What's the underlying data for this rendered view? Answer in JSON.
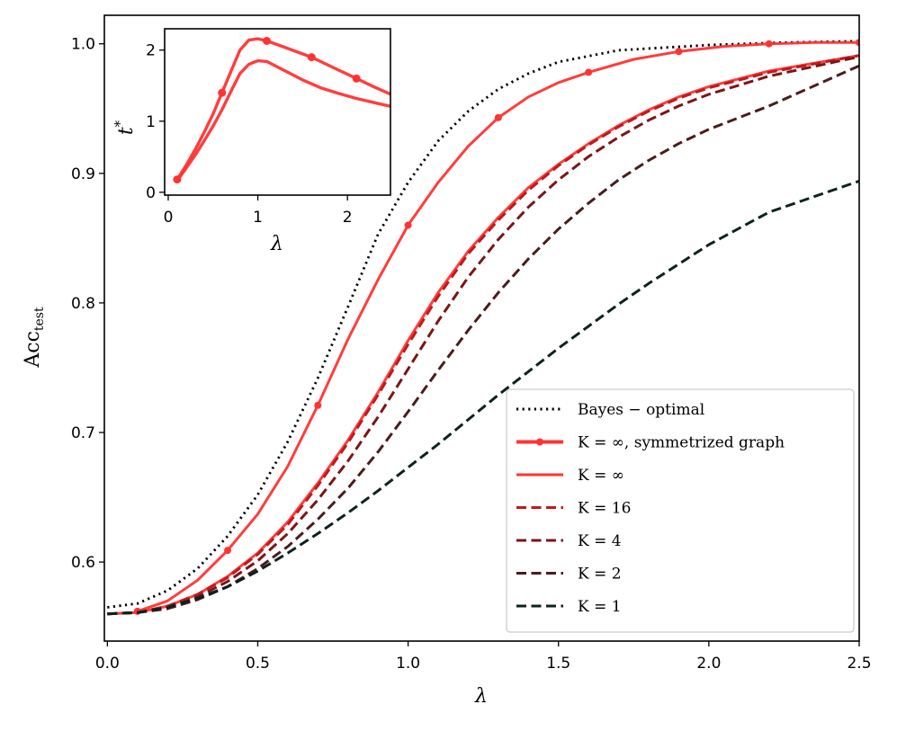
{
  "chart_data": [
    {
      "type": "line",
      "title": "",
      "xlabel": "λ",
      "ylabel": "Acc",
      "ylabel_subscript": "test",
      "xlim": [
        -0.01,
        2.5
      ],
      "ylim": [
        0.539,
        1.022
      ],
      "xticks": [
        "0.0",
        "0.5",
        "1.0",
        "1.5",
        "2.0",
        "2.5"
      ],
      "xtick_values": [
        0.0,
        0.5,
        1.0,
        1.5,
        2.0,
        2.5
      ],
      "yticks": [
        "0.6",
        "0.7",
        "0.8",
        "0.9",
        "1.0"
      ],
      "ytick_values": [
        0.6,
        0.7,
        0.8,
        0.9,
        1.0
      ],
      "grid": false,
      "legend_position": "bottom-right",
      "series": [
        {
          "name": "Bayes − optimal",
          "legend_main": "Bayes − optimal",
          "legend_sub": "",
          "color": "#000000",
          "style": "dotted",
          "markers": false,
          "x": [
            0.0,
            0.1,
            0.2,
            0.3,
            0.4,
            0.5,
            0.6,
            0.7,
            0.8,
            0.9,
            1.0,
            1.1,
            1.2,
            1.3,
            1.4,
            1.5,
            1.7,
            2.0,
            2.25,
            2.5
          ],
          "y": [
            0.565,
            0.568,
            0.578,
            0.595,
            0.62,
            0.652,
            0.693,
            0.742,
            0.797,
            0.853,
            0.893,
            0.925,
            0.948,
            0.965,
            0.977,
            0.986,
            0.995,
            0.999,
            1.001,
            1.002
          ]
        },
        {
          "name": "K = ∞, symmetrized graph",
          "legend_main": "K = ∞, symmetrized graph",
          "legend_sub": "",
          "color": "#ff3333",
          "style": "solid",
          "markers": true,
          "x": [
            0.1,
            0.2,
            0.3,
            0.4,
            0.5,
            0.6,
            0.7,
            0.8,
            0.9,
            1.0,
            1.1,
            1.2,
            1.3,
            1.4,
            1.5,
            1.6,
            1.75,
            1.9,
            2.05,
            2.2,
            2.35,
            2.5
          ],
          "y": [
            0.562,
            0.57,
            0.586,
            0.609,
            0.637,
            0.674,
            0.721,
            0.772,
            0.818,
            0.86,
            0.893,
            0.921,
            0.943,
            0.959,
            0.97,
            0.978,
            0.988,
            0.994,
            0.998,
            1.0,
            1.001,
            1.001
          ],
          "marker_x": [
            0.1,
            0.4,
            0.7,
            1.0,
            1.3,
            1.6,
            1.9,
            2.2,
            2.5
          ],
          "marker_y": [
            0.562,
            0.609,
            0.721,
            0.86,
            0.943,
            0.978,
            0.994,
            1.0,
            1.001
          ]
        },
        {
          "name": "K = ∞",
          "legend_main": "K = ∞",
          "legend_sub": "",
          "color": "#ff3333",
          "style": "solid",
          "markers": false,
          "x": [
            0.0,
            0.1,
            0.2,
            0.3,
            0.4,
            0.5,
            0.6,
            0.7,
            0.8,
            0.9,
            1.0,
            1.1,
            1.2,
            1.3,
            1.4,
            1.5,
            1.6,
            1.7,
            1.8,
            1.9,
            2.0,
            2.2,
            2.5
          ],
          "y": [
            0.56,
            0.561,
            0.566,
            0.575,
            0.589,
            0.607,
            0.631,
            0.661,
            0.694,
            0.731,
            0.771,
            0.808,
            0.84,
            0.866,
            0.889,
            0.907,
            0.923,
            0.937,
            0.949,
            0.959,
            0.967,
            0.979,
            0.991
          ]
        },
        {
          "name": "K = 16",
          "legend_main": "K = 16",
          "legend_sub": "",
          "color": "#c01a1a",
          "style": "dashed",
          "markers": false,
          "x": [
            0.0,
            0.1,
            0.2,
            0.3,
            0.4,
            0.5,
            0.6,
            0.7,
            0.8,
            0.9,
            1.0,
            1.1,
            1.2,
            1.3,
            1.4,
            1.5,
            1.6,
            1.7,
            1.8,
            1.9,
            2.0,
            2.2,
            2.5
          ],
          "y": [
            0.56,
            0.561,
            0.566,
            0.575,
            0.588,
            0.606,
            0.629,
            0.659,
            0.692,
            0.729,
            0.768,
            0.805,
            0.838,
            0.864,
            0.887,
            0.906,
            0.922,
            0.936,
            0.948,
            0.958,
            0.966,
            0.978,
            0.991
          ]
        },
        {
          "name": "K = 4",
          "legend_main": "K = 4",
          "legend_sub": "",
          "color": "#7a1616",
          "style": "dashed",
          "markers": false,
          "x": [
            0.0,
            0.1,
            0.2,
            0.3,
            0.4,
            0.5,
            0.6,
            0.7,
            0.8,
            0.9,
            1.0,
            1.1,
            1.2,
            1.3,
            1.4,
            1.5,
            1.6,
            1.7,
            1.8,
            1.9,
            2.0,
            2.2,
            2.5
          ],
          "y": [
            0.56,
            0.561,
            0.565,
            0.573,
            0.585,
            0.601,
            0.622,
            0.648,
            0.678,
            0.712,
            0.749,
            0.786,
            0.82,
            0.849,
            0.874,
            0.895,
            0.913,
            0.928,
            0.941,
            0.952,
            0.961,
            0.975,
            0.99
          ]
        },
        {
          "name": "K = 2",
          "legend_main": "K = 2",
          "legend_sub": "",
          "color": "#4a1c1c",
          "style": "dashed",
          "markers": false,
          "x": [
            0.0,
            0.1,
            0.2,
            0.3,
            0.4,
            0.5,
            0.6,
            0.7,
            0.8,
            0.9,
            1.0,
            1.1,
            1.2,
            1.3,
            1.4,
            1.5,
            1.6,
            1.7,
            1.8,
            1.9,
            2.0,
            2.2,
            2.5
          ],
          "y": [
            0.56,
            0.561,
            0.564,
            0.571,
            0.581,
            0.595,
            0.612,
            0.633,
            0.657,
            0.685,
            0.716,
            0.748,
            0.779,
            0.808,
            0.834,
            0.857,
            0.877,
            0.895,
            0.91,
            0.923,
            0.934,
            0.952,
            0.983
          ]
        },
        {
          "name": "K = 1",
          "legend_main": "K = 1",
          "legend_sub": "",
          "color": "#0d2220",
          "style": "dashed",
          "markers": false,
          "x": [
            0.0,
            0.1,
            0.2,
            0.3,
            0.4,
            0.5,
            0.6,
            0.7,
            0.8,
            0.9,
            1.0,
            1.1,
            1.2,
            1.3,
            1.4,
            1.5,
            1.6,
            1.7,
            1.8,
            1.9,
            2.0,
            2.2,
            2.5
          ],
          "y": [
            0.56,
            0.561,
            0.565,
            0.572,
            0.581,
            0.593,
            0.607,
            0.622,
            0.638,
            0.655,
            0.673,
            0.691,
            0.71,
            0.729,
            0.747,
            0.765,
            0.782,
            0.799,
            0.815,
            0.83,
            0.845,
            0.87,
            0.894
          ]
        }
      ]
    },
    {
      "type": "line",
      "title": "",
      "xlabel": "λ",
      "ylabel": "t",
      "ylabel_superscript": "*",
      "xlim": [
        -0.04,
        2.48
      ],
      "ylim": [
        -0.04,
        2.3
      ],
      "xticks": [
        "0",
        "1",
        "2"
      ],
      "xtick_values": [
        0,
        1,
        2
      ],
      "yticks": [
        "0",
        "1",
        "2"
      ],
      "ytick_values": [
        0,
        1,
        2
      ],
      "grid": false,
      "series": [
        {
          "name": "K = ∞, symmetrized graph",
          "color": "#ff3333",
          "style": "solid",
          "markers": true,
          "x": [
            0.1,
            0.2,
            0.3,
            0.4,
            0.5,
            0.6,
            0.7,
            0.8,
            0.9,
            1.0,
            1.1,
            1.3,
            1.6,
            1.9,
            2.1,
            2.3,
            2.48
          ],
          "y": [
            0.18,
            0.38,
            0.6,
            0.84,
            1.1,
            1.4,
            1.7,
            2.0,
            2.14,
            2.16,
            2.13,
            2.04,
            1.9,
            1.72,
            1.6,
            1.48,
            1.38
          ],
          "marker_x": [
            0.1,
            0.6,
            1.1,
            1.6,
            2.1
          ],
          "marker_y": [
            0.18,
            1.4,
            2.13,
            1.9,
            1.6
          ]
        },
        {
          "name": "K = ∞",
          "color": "#ff3333",
          "style": "solid",
          "markers": false,
          "x": [
            0.1,
            0.2,
            0.3,
            0.4,
            0.5,
            0.6,
            0.7,
            0.8,
            0.9,
            1.0,
            1.1,
            1.3,
            1.5,
            1.7,
            1.9,
            2.1,
            2.3,
            2.48
          ],
          "y": [
            0.16,
            0.34,
            0.52,
            0.72,
            0.93,
            1.16,
            1.42,
            1.67,
            1.8,
            1.85,
            1.84,
            1.71,
            1.58,
            1.47,
            1.39,
            1.32,
            1.26,
            1.21
          ]
        }
      ]
    }
  ]
}
